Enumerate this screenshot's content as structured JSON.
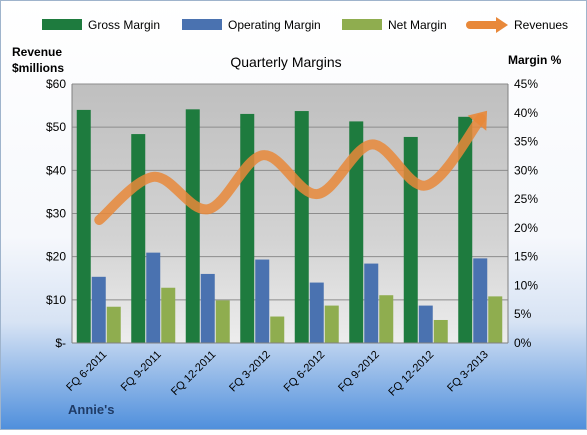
{
  "chart_data": {
    "type": "bar",
    "title": "Quarterly Margins",
    "left_axis_label": [
      "Revenue",
      "$millions"
    ],
    "right_axis_label": "Margin %",
    "footer": "Annie's",
    "left_ticks": [
      "$-",
      "$10",
      "$20",
      "$30",
      "$40",
      "$50",
      "$60"
    ],
    "right_ticks": [
      "0%",
      "5%",
      "10%",
      "15%",
      "20%",
      "25%",
      "30%",
      "35%",
      "40%",
      "45%"
    ],
    "revenue_ylim": [
      0,
      60
    ],
    "margin_ylim": [
      0,
      45
    ],
    "categories": [
      "FQ 6-2011",
      "FQ 9-2011",
      "FQ 12-2011",
      "FQ 3-2012",
      "FQ 6-2012",
      "FQ 9-2012",
      "FQ 12-2012",
      "FQ 3-2013"
    ],
    "series": [
      {
        "name": "Gross Margin",
        "axis": "right",
        "kind": "bar",
        "color": "#1e7b3e",
        "values": [
          40.5,
          36.3,
          40.6,
          39.8,
          40.3,
          38.5,
          35.8,
          39.3
        ]
      },
      {
        "name": "Operating Margin",
        "axis": "right",
        "kind": "bar",
        "color": "#4a72b0",
        "values": [
          11.5,
          15.7,
          12.0,
          14.5,
          10.5,
          13.8,
          6.5,
          14.7
        ]
      },
      {
        "name": "Net Margin",
        "axis": "right",
        "kind": "bar",
        "color": "#8fad4f",
        "values": [
          6.3,
          9.6,
          7.4,
          4.6,
          6.5,
          8.3,
          4.0,
          8.1
        ]
      },
      {
        "name": "Revenues",
        "axis": "left",
        "kind": "line",
        "color": "#e8883a",
        "values": [
          28.5,
          38.5,
          31.0,
          43.5,
          34.5,
          46.0,
          36.5,
          52.0
        ]
      }
    ],
    "grid": true,
    "legend_position": "top"
  }
}
